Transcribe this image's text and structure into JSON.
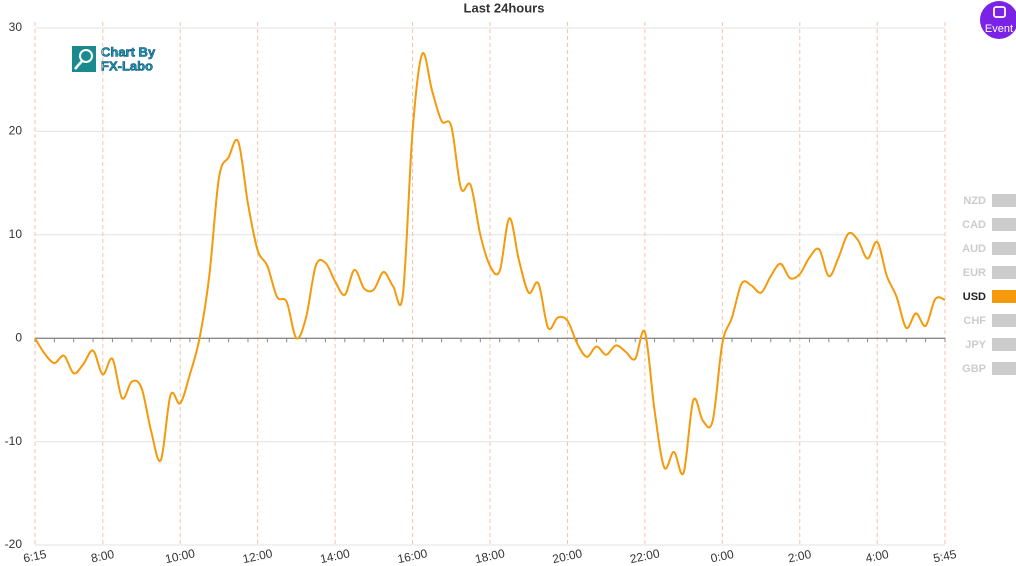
{
  "chart_data": {
    "type": "line",
    "title": "Last 24hours",
    "categories": [
      "6:15",
      null,
      null,
      null,
      null,
      null,
      null,
      "8:00",
      null,
      null,
      null,
      null,
      null,
      null,
      null,
      "10:00",
      null,
      null,
      null,
      null,
      null,
      null,
      null,
      "12:00",
      null,
      null,
      null,
      null,
      null,
      null,
      null,
      "14:00",
      null,
      null,
      null,
      null,
      null,
      null,
      null,
      "16:00",
      null,
      null,
      null,
      null,
      null,
      null,
      null,
      "18:00",
      null,
      null,
      null,
      null,
      null,
      null,
      null,
      "20:00",
      null,
      null,
      null,
      null,
      null,
      null,
      null,
      "22:00",
      null,
      null,
      null,
      null,
      null,
      null,
      null,
      "0:00",
      null,
      null,
      null,
      null,
      null,
      null,
      null,
      "2:00",
      null,
      null,
      null,
      null,
      null,
      null,
      null,
      "4:00",
      null,
      null,
      null,
      null,
      null,
      null,
      "5:45"
    ],
    "series": [
      {
        "name": "USD",
        "color": "#f59a0c",
        "values": [
          0,
          -1.5,
          -2.4,
          -1.7,
          -3.4,
          -2.5,
          -1.2,
          -3.5,
          -2.0,
          -5.8,
          -4.2,
          -4.8,
          -9,
          -11.8,
          -5.5,
          -6.3,
          -3.5,
          0,
          6,
          15.5,
          17.5,
          19,
          13,
          8.5,
          7,
          4,
          3.5,
          0,
          2,
          7,
          7.3,
          5.5,
          4.2,
          6.6,
          4.8,
          4.7,
          6.4,
          5,
          4.2,
          20,
          27.5,
          24,
          21,
          20.5,
          14.5,
          14.8,
          10,
          7,
          6.5,
          11.6,
          7.5,
          4.4,
          5.3,
          1,
          2,
          1.7,
          -0.5,
          -1.8,
          -0.8,
          -1.6,
          -0.7,
          -1.3,
          -2.0,
          0.6,
          -7,
          -12.5,
          -11,
          -13,
          -6,
          -8,
          -8,
          -0.5,
          2,
          5.3,
          5.1,
          4.4,
          6,
          7.2,
          5.8,
          6.2,
          7.8,
          8.6,
          6,
          7.8,
          10.1,
          9.5,
          7.7,
          9.3,
          6,
          4,
          1,
          2.4,
          1.2,
          3.8,
          3.7
        ]
      }
    ],
    "legend": {
      "items": [
        "NZD",
        "CAD",
        "AUD",
        "EUR",
        "USD",
        "CHF",
        "JPY",
        "GBP"
      ],
      "inactive_color": "#cccccc"
    },
    "ylim": [
      -20,
      30
    ],
    "yticks": [
      -20,
      -10,
      0,
      10,
      20,
      30
    ],
    "grid": true
  },
  "ui": {
    "logo": [
      "Chart By",
      "FX-Labo"
    ],
    "event_button": "Event"
  }
}
